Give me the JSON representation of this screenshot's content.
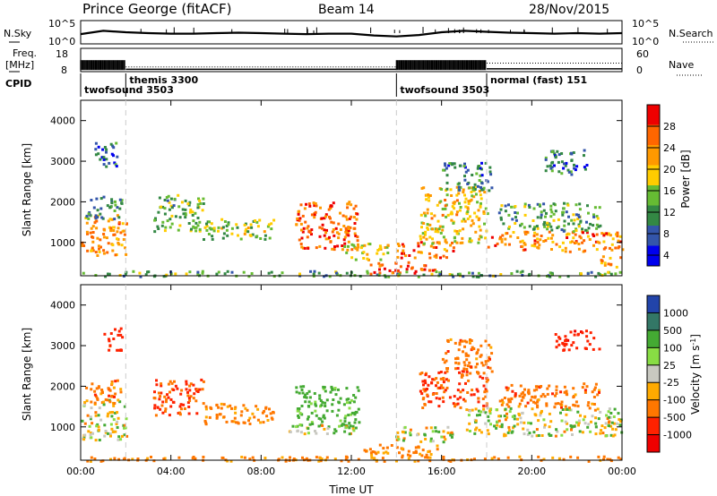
{
  "header": {
    "station": "Prince George (fitACF)",
    "beam": "Beam 14",
    "date": "28/Nov/2015"
  },
  "colors": {
    "axis": "#000000",
    "background": "#ffffff",
    "modeline": "#cccccc"
  },
  "chart_data": [
    {
      "type": "line",
      "name": "noise-panel",
      "left_label": "N.Sky",
      "right_label": "N.Search",
      "y_ticks_left": [
        "10^5",
        "10^0"
      ],
      "y_ticks_right": [
        "10^5",
        "10^0"
      ],
      "scale": "log",
      "series": [
        {
          "name": "N.Sky",
          "style": "solid",
          "x": [
            0,
            1,
            2,
            3,
            4,
            5,
            6,
            7,
            8,
            9,
            10,
            11,
            12,
            13,
            14,
            15,
            16,
            17,
            18,
            19,
            20,
            21,
            22,
            23,
            24
          ],
          "y": [
            2.1,
            2.8,
            2.5,
            2.3,
            2.2,
            2.2,
            2.3,
            2.4,
            2.3,
            2.2,
            2.1,
            2.2,
            2.2,
            1.8,
            1.6,
            1.9,
            2.5,
            2.8,
            2.6,
            2.4,
            2.3,
            2.2,
            2.3,
            2.2,
            2.3
          ]
        }
      ]
    },
    {
      "type": "line",
      "name": "frequency-panel",
      "left_label": "Freq.",
      "left_unit": "[MHz]",
      "right_label": "Nave",
      "y_ticks_left": [
        "18",
        "8"
      ],
      "y_ticks_right": [
        "60",
        "0"
      ],
      "series": [
        {
          "name": "Freq.",
          "style": "solid",
          "segments": [
            [
              0,
              2,
              11.0
            ],
            [
              2,
              14,
              9.0
            ],
            [
              14,
              18,
              11.0
            ],
            [
              18,
              24,
              9.2
            ]
          ]
        },
        {
          "name": "Nave",
          "style": "dotted",
          "segments": [
            [
              2,
              14,
              12
            ],
            [
              18,
              24,
              22
            ]
          ]
        }
      ]
    },
    {
      "type": "table",
      "name": "cpid-panel",
      "label": "CPID",
      "modes": [
        {
          "start": 0,
          "end": 2,
          "text": "twofsound 3503"
        },
        {
          "start": 2,
          "end": 14,
          "text": "themis 3300"
        },
        {
          "start": 14,
          "end": 18,
          "text": "twofsound 3503"
        },
        {
          "start": 18,
          "end": 24,
          "text": "normal (fast) 151"
        }
      ]
    },
    {
      "type": "heatmap",
      "name": "power-panel",
      "ylabel": "Slant Range [km]",
      "xlim": [
        0,
        24
      ],
      "ylim": [
        180,
        4500
      ],
      "y_ticks": [
        1000,
        2000,
        3000,
        4000
      ],
      "colorbar": {
        "label": "Power [dB]",
        "ticks": [
          "28",
          "24",
          "20",
          "16",
          "12",
          "8",
          "4"
        ],
        "colors": [
          "#ee0000",
          "#ff6600",
          "#ff9900",
          "#ffcc00",
          "#66bb33",
          "#338844",
          "#3355aa",
          "#0000ee"
        ],
        "range": [
          0,
          30
        ]
      },
      "regions": [
        {
          "t0": 0.0,
          "t1": 2.0,
          "r0": 700,
          "r1": 1700,
          "power": 22
        },
        {
          "t0": 0.2,
          "t1": 1.8,
          "r0": 1600,
          "r1": 2200,
          "power": 8
        },
        {
          "t0": 0.6,
          "t1": 1.6,
          "r0": 2800,
          "r1": 3500,
          "power": 6
        },
        {
          "t0": 3.2,
          "t1": 5.4,
          "r0": 1300,
          "r1": 2200,
          "power": 11
        },
        {
          "t0": 5.4,
          "t1": 8.6,
          "r0": 1100,
          "r1": 1600,
          "power": 14
        },
        {
          "t0": 9.5,
          "t1": 12.3,
          "r0": 850,
          "r1": 2050,
          "power": 26
        },
        {
          "t0": 11.5,
          "t1": 14.0,
          "r0": 600,
          "r1": 1000,
          "power": 17
        },
        {
          "t0": 12.8,
          "t1": 15.8,
          "r0": 250,
          "r1": 550,
          "power": 28
        },
        {
          "t0": 13.9,
          "t1": 16.5,
          "r0": 650,
          "r1": 1050,
          "power": 25
        },
        {
          "t0": 15.0,
          "t1": 18.0,
          "r0": 1000,
          "r1": 2400,
          "power": 18
        },
        {
          "t0": 16.0,
          "t1": 18.2,
          "r0": 2300,
          "r1": 3000,
          "power": 7
        },
        {
          "t0": 18.0,
          "t1": 24.0,
          "r0": 800,
          "r1": 1300,
          "power": 23
        },
        {
          "t0": 18.5,
          "t1": 23.0,
          "r0": 1300,
          "r1": 2000,
          "power": 11
        },
        {
          "t0": 20.5,
          "t1": 22.5,
          "r0": 2700,
          "r1": 3300,
          "power": 6
        },
        {
          "t0": 23.0,
          "t1": 24.0,
          "r0": 400,
          "r1": 700,
          "power": 20
        },
        {
          "t0": 0.0,
          "t1": 24.0,
          "r0": 180,
          "r1": 320,
          "power": 10
        }
      ]
    },
    {
      "type": "heatmap",
      "name": "velocity-panel",
      "ylabel": "Slant Range [km]",
      "xlabel": "Time UT",
      "xlim": [
        0,
        24
      ],
      "ylim": [
        180,
        4500
      ],
      "x_ticks": [
        "00:00",
        "04:00",
        "08:00",
        "12:00",
        "16:00",
        "20:00",
        "00:00"
      ],
      "y_ticks": [
        1000,
        2000,
        3000,
        4000
      ],
      "colorbar": {
        "label": "Velocity [m s^-1]",
        "ticks": [
          "1000",
          "500",
          "100",
          "25",
          "-25",
          "-100",
          "-500",
          "-1000"
        ],
        "colors": [
          "#2244aa",
          "#337766",
          "#44aa33",
          "#88dd44",
          "#c8c8c0",
          "#ffaa00",
          "#ff7700",
          "#ff2200",
          "#ee0000"
        ]
      },
      "regions": [
        {
          "t0": 0.0,
          "t1": 2.0,
          "r0": 700,
          "r1": 1700,
          "vel": 0
        },
        {
          "t0": 0.2,
          "t1": 1.8,
          "r0": 1600,
          "r1": 2200,
          "vel": -200
        },
        {
          "t0": 1.0,
          "t1": 1.8,
          "r0": 2900,
          "r1": 3500,
          "vel": -400
        },
        {
          "t0": 3.2,
          "t1": 5.4,
          "r0": 1300,
          "r1": 2200,
          "vel": -300
        },
        {
          "t0": 5.4,
          "t1": 8.6,
          "r0": 1100,
          "r1": 1600,
          "vel": -150
        },
        {
          "t0": 9.5,
          "t1": 12.3,
          "r0": 1000,
          "r1": 2050,
          "vel": 150
        },
        {
          "t0": 9.2,
          "t1": 12.2,
          "r0": 850,
          "r1": 1100,
          "vel": 0
        },
        {
          "t0": 12.5,
          "t1": 15.8,
          "r0": 250,
          "r1": 600,
          "vel": -150
        },
        {
          "t0": 13.9,
          "t1": 16.5,
          "r0": 650,
          "r1": 1050,
          "vel": 0
        },
        {
          "t0": 15.0,
          "t1": 18.0,
          "r0": 1500,
          "r1": 2400,
          "vel": -300
        },
        {
          "t0": 16.0,
          "t1": 18.2,
          "r0": 2300,
          "r1": 3200,
          "vel": -200
        },
        {
          "t0": 17.0,
          "t1": 24.0,
          "r0": 800,
          "r1": 1500,
          "vel": 0
        },
        {
          "t0": 18.5,
          "t1": 23.0,
          "r0": 1500,
          "r1": 2100,
          "vel": -200
        },
        {
          "t0": 21.0,
          "t1": 23.0,
          "r0": 2900,
          "r1": 3400,
          "vel": -600
        },
        {
          "t0": 0.0,
          "t1": 24.0,
          "r0": 180,
          "r1": 300,
          "vel": -150
        }
      ]
    }
  ]
}
